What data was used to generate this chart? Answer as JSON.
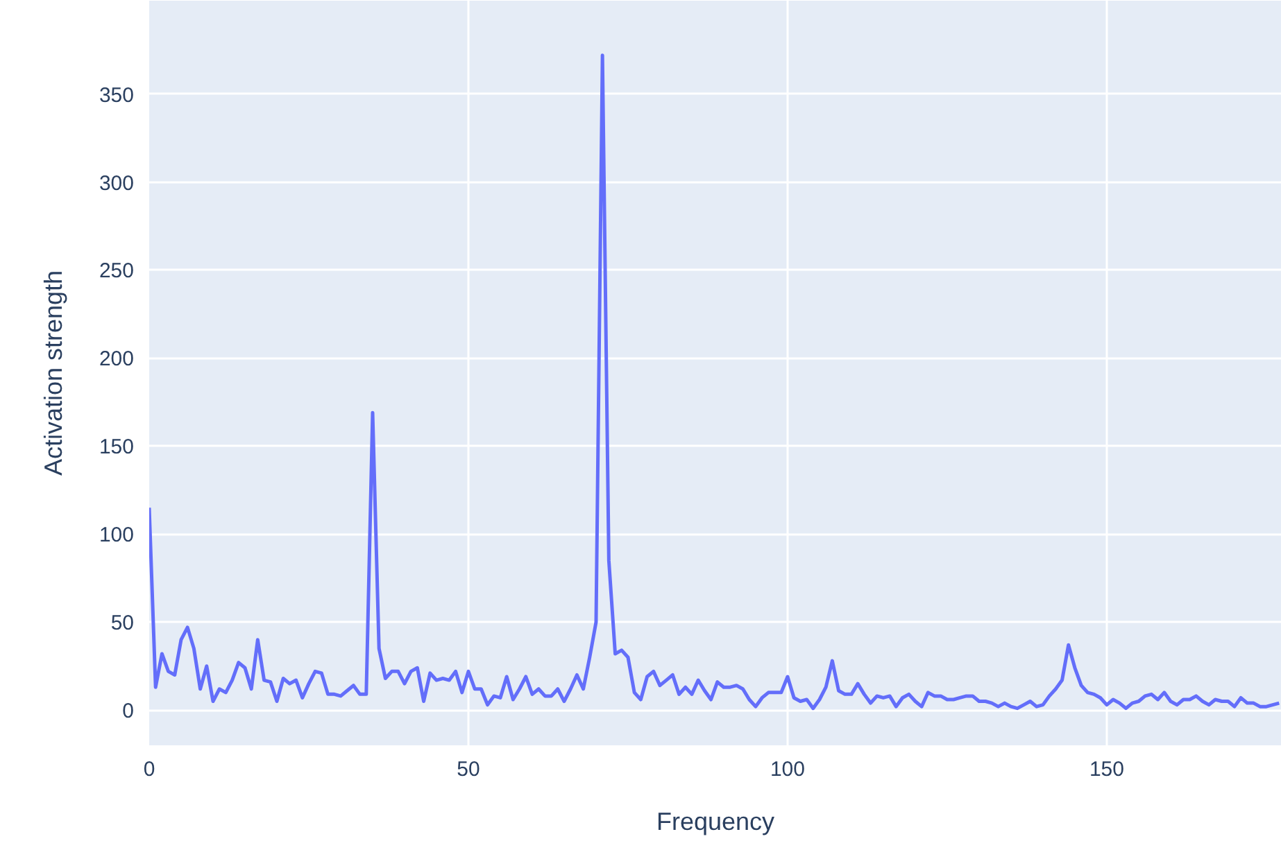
{
  "chart_data": {
    "type": "line",
    "xlabel": "Frequency",
    "ylabel": "Activation strength",
    "x": [
      0,
      1,
      2,
      3,
      4,
      5,
      6,
      7,
      8,
      9,
      10,
      11,
      12,
      13,
      14,
      15,
      16,
      17,
      18,
      19,
      20,
      21,
      22,
      23,
      24,
      25,
      26,
      27,
      28,
      29,
      30,
      31,
      32,
      33,
      34,
      35,
      36,
      37,
      38,
      39,
      40,
      41,
      42,
      43,
      44,
      45,
      46,
      47,
      48,
      49,
      50,
      51,
      52,
      53,
      54,
      55,
      56,
      57,
      58,
      59,
      60,
      61,
      62,
      63,
      64,
      65,
      66,
      67,
      68,
      69,
      70,
      71,
      72,
      73,
      74,
      75,
      76,
      77,
      78,
      79,
      80,
      81,
      82,
      83,
      84,
      85,
      86,
      87,
      88,
      89,
      90,
      91,
      92,
      93,
      94,
      95,
      96,
      97,
      98,
      99,
      100,
      101,
      102,
      103,
      104,
      105,
      106,
      107,
      108,
      109,
      110,
      111,
      112,
      113,
      114,
      115,
      116,
      117,
      118,
      119,
      120,
      121,
      122,
      123,
      124,
      125,
      126,
      127,
      128,
      129,
      130,
      131,
      132,
      133,
      134,
      135,
      136,
      137,
      138,
      139,
      140,
      141,
      142,
      143,
      144,
      145,
      146,
      147,
      148,
      149,
      150,
      151,
      152,
      153,
      154,
      155,
      156,
      157,
      158,
      159,
      160,
      161,
      162,
      163,
      164,
      165,
      166,
      167,
      168,
      169,
      170,
      171,
      172,
      173,
      174,
      175,
      176,
      177
    ],
    "series": [
      {
        "color": "#636efa",
        "values": [
          115,
          13,
          32,
          22,
          20,
          40,
          47,
          35,
          12,
          25,
          5,
          12,
          10,
          17,
          27,
          24,
          12,
          40,
          17,
          16,
          5,
          18,
          15,
          17,
          7,
          15,
          22,
          21,
          9,
          9,
          8,
          11,
          14,
          9,
          9,
          169,
          35,
          18,
          22,
          22,
          15,
          22,
          24,
          5,
          21,
          17,
          18,
          17,
          22,
          10,
          22,
          12,
          12,
          3,
          8,
          7,
          19,
          6,
          12,
          19,
          9,
          12,
          8,
          8,
          12,
          5,
          12,
          20,
          12,
          30,
          50,
          372,
          85,
          32,
          34,
          30,
          10,
          6,
          19,
          22,
          14,
          17,
          20,
          9,
          13,
          9,
          17,
          11,
          6,
          16,
          13,
          13,
          14,
          12,
          6,
          2,
          7,
          10,
          10,
          10,
          19,
          7,
          5,
          6,
          1,
          6,
          13,
          28,
          11,
          9,
          9,
          15,
          9,
          4,
          8,
          7,
          8,
          2,
          7,
          9,
          5,
          2,
          10,
          8,
          8,
          6,
          6,
          7,
          8,
          8,
          5,
          5,
          4,
          2,
          4,
          2,
          1,
          3,
          5,
          2,
          3,
          8,
          12,
          17,
          37,
          24,
          14,
          10,
          9,
          7,
          3,
          6,
          4,
          1,
          4,
          5,
          8,
          9,
          6,
          10,
          5,
          3,
          6,
          6,
          8,
          5,
          3,
          6,
          5,
          5,
          2,
          7,
          4,
          4,
          2,
          2,
          3,
          4
        ]
      }
    ],
    "xlim": [
      0,
      177.4
    ],
    "ylim": [
      -20,
      403
    ],
    "xticks": [
      0,
      50,
      100,
      150
    ],
    "yticks": [
      0,
      50,
      100,
      150,
      200,
      250,
      300,
      350
    ],
    "grid": true,
    "marker": "none",
    "line_style": "solid"
  }
}
